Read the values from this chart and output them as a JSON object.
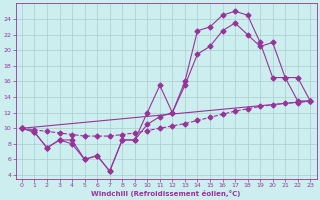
{
  "xlabel": "Windchill (Refroidissement éolien,°C)",
  "bg_color": "#cceeee",
  "line_color": "#993399",
  "xlim": [
    -0.5,
    23.5
  ],
  "ylim": [
    3.5,
    26
  ],
  "yticks": [
    4,
    6,
    8,
    10,
    12,
    14,
    16,
    18,
    20,
    22,
    24
  ],
  "xticks": [
    0,
    1,
    2,
    3,
    4,
    5,
    6,
    7,
    8,
    9,
    10,
    11,
    12,
    13,
    14,
    15,
    16,
    17,
    18,
    19,
    20,
    21,
    22,
    23
  ],
  "line1_x": [
    0,
    1,
    2,
    3,
    4,
    5,
    6,
    7,
    8,
    9,
    10,
    11,
    12,
    13,
    14,
    15,
    16,
    17,
    18,
    19,
    20,
    21,
    22,
    23
  ],
  "line1_y": [
    10,
    9.5,
    7.5,
    8.5,
    8.5,
    6.0,
    6.5,
    4.5,
    8.5,
    8.5,
    12.0,
    15.5,
    12.0,
    16.0,
    22.5,
    23.0,
    24.5,
    25.0,
    24.5,
    21.0,
    16.5,
    16.5,
    13.5,
    13.5
  ],
  "line2_x": [
    0,
    1,
    2,
    3,
    4,
    5,
    6,
    7,
    8,
    9,
    10,
    11,
    12,
    13,
    14,
    15,
    16,
    17,
    18,
    19,
    20,
    21,
    22,
    23
  ],
  "line2_y": [
    10,
    9.5,
    7.5,
    8.5,
    8.0,
    6.0,
    6.5,
    4.5,
    8.5,
    8.5,
    10.5,
    11.5,
    12.0,
    15.5,
    19.5,
    20.5,
    22.5,
    23.5,
    22.0,
    20.5,
    21.0,
    16.5,
    16.5,
    13.5
  ],
  "line3_x": [
    0,
    23
  ],
  "line3_y": [
    10,
    13.5
  ],
  "line4_x": [
    0,
    1,
    2,
    3,
    4,
    5,
    6,
    7,
    8,
    9,
    10,
    11,
    12,
    13,
    14,
    15,
    16,
    17,
    18,
    19,
    20,
    21,
    22,
    23
  ],
  "line4_y": [
    10,
    9.8,
    9.6,
    9.4,
    9.2,
    9.0,
    9.0,
    9.0,
    9.2,
    9.4,
    9.7,
    10.0,
    10.3,
    10.6,
    11.0,
    11.4,
    11.8,
    12.2,
    12.5,
    12.8,
    13.0,
    13.2,
    13.3,
    13.5
  ]
}
